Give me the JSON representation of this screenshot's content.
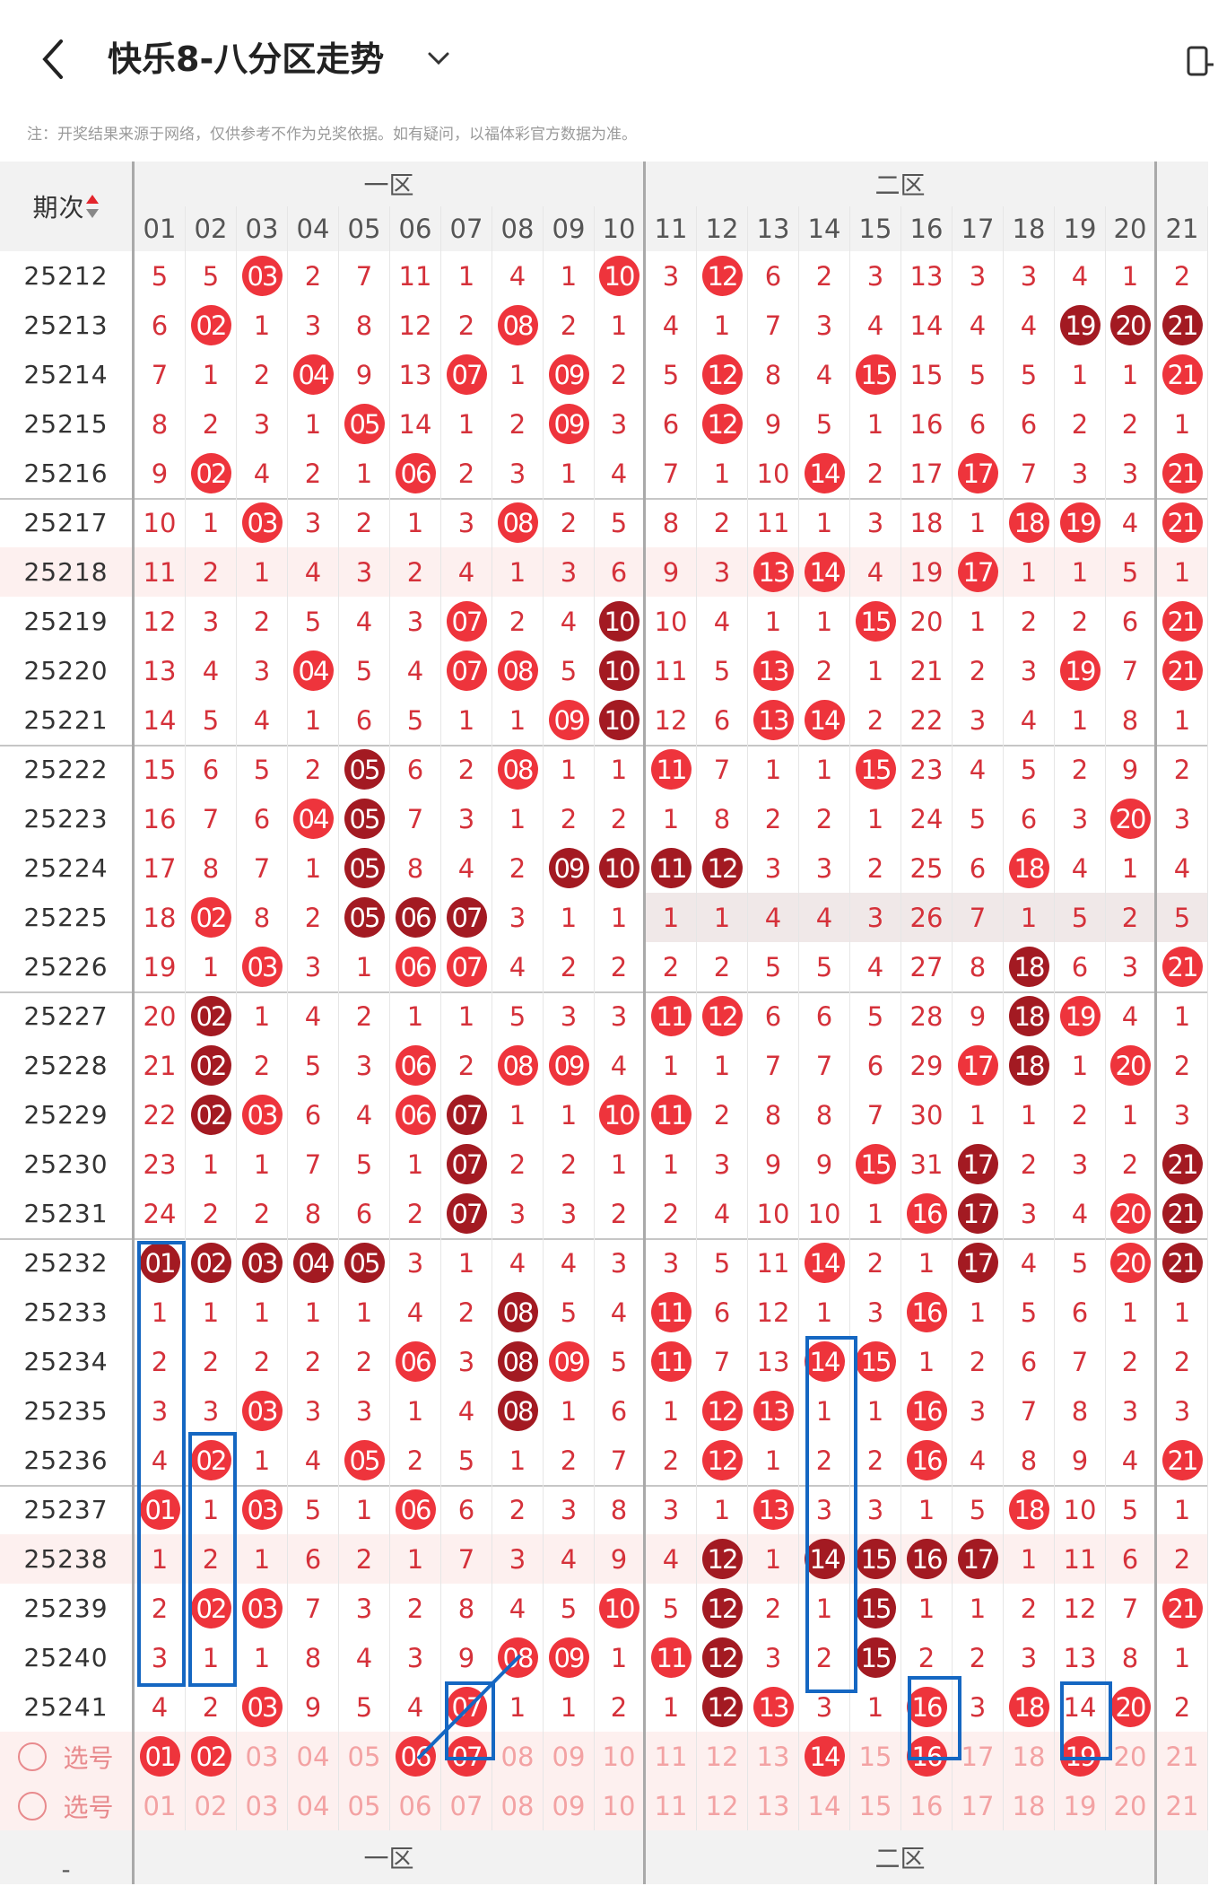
{
  "header": {
    "title": "快乐8-八分区走势",
    "notice": "注：开奖结果来源于网络，仅供参考不作为兑奖依据。如有疑问，以福体彩官方数据为准。"
  },
  "table": {
    "period_label": "期次",
    "zone1_label": "一区",
    "zone2_label": "二区",
    "columns": [
      "01",
      "02",
      "03",
      "04",
      "05",
      "06",
      "07",
      "08",
      "09",
      "10",
      "11",
      "12",
      "13",
      "14",
      "15",
      "16",
      "17",
      "18",
      "19",
      "20",
      "21"
    ],
    "rows": [
      {
        "period": "25212",
        "cells": [
          "5",
          "5",
          "r03",
          "2",
          "7",
          "11",
          "1",
          "4",
          "1",
          "r10",
          "3",
          "r12",
          "6",
          "2",
          "3",
          "13",
          "3",
          "3",
          "4",
          "1",
          "2"
        ]
      },
      {
        "period": "25213",
        "cells": [
          "6",
          "r02",
          "1",
          "3",
          "8",
          "12",
          "2",
          "r08",
          "2",
          "1",
          "4",
          "1",
          "7",
          "3",
          "4",
          "14",
          "4",
          "4",
          "d19",
          "d20",
          "d21"
        ]
      },
      {
        "period": "25214",
        "cells": [
          "7",
          "1",
          "2",
          "r04",
          "9",
          "13",
          "r07",
          "1",
          "r09",
          "2",
          "5",
          "r12",
          "8",
          "4",
          "r15",
          "15",
          "5",
          "5",
          "1",
          "1",
          "r21"
        ]
      },
      {
        "period": "25215",
        "cells": [
          "8",
          "2",
          "3",
          "1",
          "r05",
          "14",
          "1",
          "2",
          "r09",
          "3",
          "6",
          "r12",
          "9",
          "5",
          "1",
          "16",
          "6",
          "6",
          "2",
          "2",
          "1"
        ]
      },
      {
        "period": "25216",
        "cells": [
          "9",
          "r02",
          "4",
          "2",
          "1",
          "r06",
          "2",
          "3",
          "1",
          "4",
          "7",
          "1",
          "10",
          "r14",
          "2",
          "17",
          "r17",
          "7",
          "3",
          "3",
          "r21"
        ]
      },
      {
        "period": "25217",
        "cells": [
          "10",
          "1",
          "r03",
          "3",
          "2",
          "1",
          "3",
          "r08",
          "2",
          "5",
          "8",
          "2",
          "11",
          "1",
          "3",
          "18",
          "1",
          "r18",
          "r19",
          "4",
          "r21"
        ]
      },
      {
        "period": "25218",
        "cells": [
          "11",
          "2",
          "1",
          "4",
          "3",
          "2",
          "4",
          "1",
          "3",
          "6",
          "9",
          "3",
          "r13",
          "r14",
          "4",
          "19",
          "r17",
          "1",
          "1",
          "5",
          "1"
        ]
      },
      {
        "period": "25219",
        "cells": [
          "12",
          "3",
          "2",
          "5",
          "4",
          "3",
          "r07",
          "2",
          "4",
          "d10",
          "10",
          "4",
          "1",
          "1",
          "r15",
          "20",
          "1",
          "2",
          "2",
          "6",
          "r21"
        ]
      },
      {
        "period": "25220",
        "cells": [
          "13",
          "4",
          "3",
          "r04",
          "5",
          "4",
          "r07",
          "r08",
          "5",
          "d10",
          "11",
          "5",
          "r13",
          "2",
          "1",
          "21",
          "2",
          "3",
          "r19",
          "7",
          "r21"
        ]
      },
      {
        "period": "25221",
        "cells": [
          "14",
          "5",
          "4",
          "1",
          "6",
          "5",
          "1",
          "1",
          "r09",
          "d10",
          "12",
          "6",
          "r13",
          "r14",
          "2",
          "22",
          "3",
          "4",
          "1",
          "8",
          "1"
        ]
      },
      {
        "period": "25222",
        "cells": [
          "15",
          "6",
          "5",
          "2",
          "d05",
          "6",
          "2",
          "r08",
          "1",
          "1",
          "r11",
          "7",
          "1",
          "1",
          "r15",
          "23",
          "4",
          "5",
          "2",
          "9",
          "2"
        ]
      },
      {
        "period": "25223",
        "cells": [
          "16",
          "7",
          "6",
          "r04",
          "d05",
          "7",
          "3",
          "1",
          "2",
          "2",
          "1",
          "8",
          "2",
          "2",
          "1",
          "24",
          "5",
          "6",
          "3",
          "r20",
          "3"
        ]
      },
      {
        "period": "25224",
        "cells": [
          "17",
          "8",
          "7",
          "1",
          "d05",
          "8",
          "4",
          "2",
          "d09",
          "d10",
          "d11",
          "d12",
          "3",
          "3",
          "2",
          "25",
          "6",
          "r18",
          "4",
          "1",
          "4"
        ]
      },
      {
        "period": "25225",
        "cells": [
          "18",
          "r02",
          "8",
          "2",
          "d05",
          "d06",
          "d07",
          "3",
          "1",
          "1",
          "1",
          "1",
          "4",
          "4",
          "3",
          "26",
          "7",
          "1",
          "5",
          "2",
          "5"
        ]
      },
      {
        "period": "25226",
        "cells": [
          "19",
          "1",
          "r03",
          "3",
          "1",
          "r06",
          "r07",
          "4",
          "2",
          "2",
          "2",
          "2",
          "5",
          "5",
          "4",
          "27",
          "8",
          "d18",
          "6",
          "3",
          "r21"
        ]
      },
      {
        "period": "25227",
        "cells": [
          "20",
          "d02",
          "1",
          "4",
          "2",
          "1",
          "1",
          "5",
          "3",
          "3",
          "r11",
          "r12",
          "6",
          "6",
          "5",
          "28",
          "9",
          "d18",
          "r19",
          "4",
          "1"
        ]
      },
      {
        "period": "25228",
        "cells": [
          "21",
          "d02",
          "2",
          "5",
          "3",
          "r06",
          "2",
          "r08",
          "r09",
          "4",
          "1",
          "1",
          "7",
          "7",
          "6",
          "29",
          "r17",
          "d18",
          "1",
          "r20",
          "2"
        ]
      },
      {
        "period": "25229",
        "cells": [
          "22",
          "d02",
          "r03",
          "6",
          "4",
          "r06",
          "d07",
          "1",
          "1",
          "r10",
          "r11",
          "2",
          "8",
          "8",
          "7",
          "30",
          "1",
          "1",
          "2",
          "1",
          "3"
        ]
      },
      {
        "period": "25230",
        "cells": [
          "23",
          "1",
          "1",
          "7",
          "5",
          "1",
          "d07",
          "2",
          "2",
          "1",
          "1",
          "3",
          "9",
          "9",
          "r15",
          "31",
          "d17",
          "2",
          "3",
          "2",
          "d21"
        ]
      },
      {
        "period": "25231",
        "cells": [
          "24",
          "2",
          "2",
          "8",
          "6",
          "2",
          "d07",
          "3",
          "3",
          "2",
          "2",
          "4",
          "10",
          "10",
          "1",
          "r16",
          "d17",
          "3",
          "4",
          "r20",
          "d21"
        ]
      },
      {
        "period": "25232",
        "cells": [
          "d01",
          "d02",
          "d03",
          "d04",
          "d05",
          "3",
          "1",
          "4",
          "4",
          "3",
          "3",
          "5",
          "11",
          "r14",
          "2",
          "1",
          "d17",
          "4",
          "5",
          "r20",
          "d21"
        ]
      },
      {
        "period": "25233",
        "cells": [
          "1",
          "1",
          "1",
          "1",
          "1",
          "4",
          "2",
          "d08",
          "5",
          "4",
          "r11",
          "6",
          "12",
          "1",
          "3",
          "r16",
          "1",
          "5",
          "6",
          "1",
          "1"
        ]
      },
      {
        "period": "25234",
        "cells": [
          "2",
          "2",
          "2",
          "2",
          "2",
          "r06",
          "3",
          "d08",
          "r09",
          "5",
          "r11",
          "7",
          "13",
          "r14",
          "r15",
          "1",
          "2",
          "6",
          "7",
          "2",
          "2"
        ]
      },
      {
        "period": "25235",
        "cells": [
          "3",
          "3",
          "r03",
          "3",
          "3",
          "1",
          "4",
          "d08",
          "1",
          "6",
          "1",
          "r12",
          "r13",
          "1",
          "1",
          "r16",
          "3",
          "7",
          "8",
          "3",
          "3"
        ]
      },
      {
        "period": "25236",
        "cells": [
          "4",
          "r02",
          "1",
          "4",
          "r05",
          "2",
          "5",
          "1",
          "2",
          "7",
          "2",
          "r12",
          "1",
          "2",
          "2",
          "r16",
          "4",
          "8",
          "9",
          "4",
          "r21"
        ]
      },
      {
        "period": "25237",
        "cells": [
          "r01",
          "1",
          "r03",
          "5",
          "1",
          "r06",
          "6",
          "2",
          "3",
          "8",
          "3",
          "1",
          "r13",
          "3",
          "3",
          "1",
          "5",
          "r18",
          "10",
          "5",
          "1"
        ]
      },
      {
        "period": "25238",
        "cells": [
          "1",
          "2",
          "1",
          "6",
          "2",
          "1",
          "7",
          "3",
          "4",
          "9",
          "4",
          "d12",
          "1",
          "d14",
          "d15",
          "d16",
          "d17",
          "1",
          "11",
          "6",
          "2"
        ]
      },
      {
        "period": "25239",
        "cells": [
          "2",
          "r02",
          "r03",
          "7",
          "3",
          "2",
          "8",
          "4",
          "5",
          "r10",
          "5",
          "d12",
          "2",
          "1",
          "d15",
          "1",
          "1",
          "2",
          "12",
          "7",
          "r21"
        ]
      },
      {
        "period": "25240",
        "cells": [
          "3",
          "1",
          "1",
          "8",
          "4",
          "3",
          "9",
          "r08",
          "r09",
          "1",
          "r11",
          "d12",
          "3",
          "2",
          "d15",
          "2",
          "2",
          "3",
          "13",
          "8",
          "1"
        ]
      },
      {
        "period": "25241",
        "cells": [
          "4",
          "2",
          "r03",
          "9",
          "5",
          "4",
          "r07",
          "1",
          "1",
          "2",
          "1",
          "d12",
          "r13",
          "3",
          "1",
          "r16",
          "3",
          "r18",
          "14",
          "r20",
          "2"
        ]
      }
    ],
    "select_rows": [
      {
        "label": "选号",
        "cells": [
          "r01",
          "r02",
          "03",
          "04",
          "05",
          "r06",
          "r07",
          "08",
          "09",
          "10",
          "11",
          "12",
          "13",
          "r14",
          "15",
          "r16",
          "17",
          "18",
          "r19",
          "20",
          "21"
        ]
      },
      {
        "label": "选号",
        "cells": [
          "01",
          "02",
          "03",
          "04",
          "05",
          "06",
          "07",
          "08",
          "09",
          "10",
          "11",
          "12",
          "13",
          "14",
          "15",
          "16",
          "17",
          "18",
          "19",
          "20",
          "21"
        ]
      }
    ],
    "pink_rows": [
      "25218",
      "25238"
    ],
    "grey_row": "25225"
  }
}
